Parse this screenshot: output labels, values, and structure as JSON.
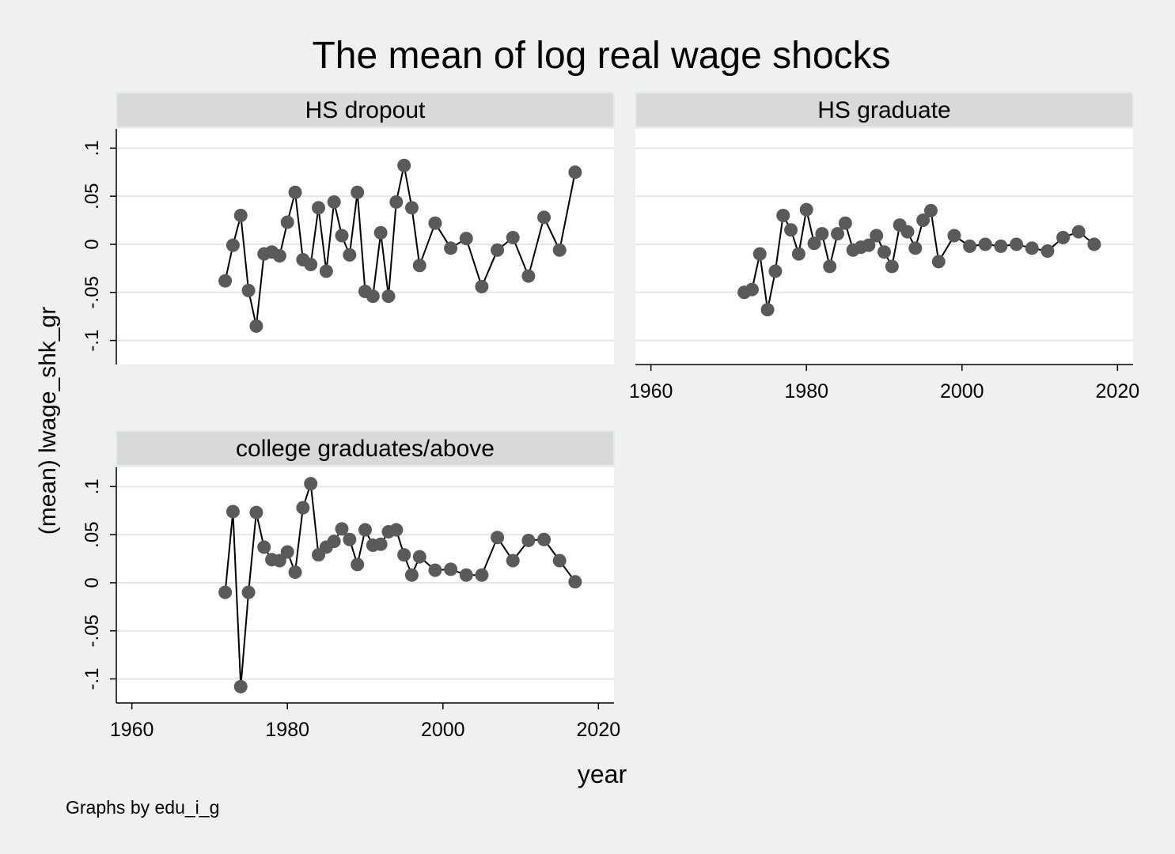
{
  "chart_data": {
    "type": "line",
    "title": "The mean of log real wage shocks",
    "xlabel": "year",
    "ylabel": "(mean) lwage_shk_gr",
    "note": "Graphs by edu_i_g",
    "xlim": [
      1958,
      2022
    ],
    "ylim": [
      -0.125,
      0.12
    ],
    "xticks": [
      1960,
      1980,
      2000,
      2020
    ],
    "xtick_labels": [
      "1960",
      "1980",
      "2000",
      "2020"
    ],
    "yticks": [
      -0.1,
      -0.05,
      0,
      0.05,
      0.1
    ],
    "ytick_labels": [
      "-.1",
      "-.05",
      "0",
      ".05",
      ".1"
    ],
    "grid": true,
    "markers": true,
    "colors": {
      "background": "#f0f0f0",
      "plot_background": "#ffffff",
      "strip": "#d9d9d9",
      "strip_border": "#e3edf0",
      "marker": "#5a5a5a",
      "line": "#000000",
      "grid": "#e6e6e6"
    },
    "panels": [
      {
        "name": "HS dropout",
        "x": [
          1972,
          1973,
          1974,
          1975,
          1976,
          1977,
          1978,
          1979,
          1980,
          1981,
          1982,
          1983,
          1984,
          1985,
          1986,
          1987,
          1988,
          1989,
          1990,
          1991,
          1992,
          1993,
          1994,
          1995,
          1996,
          1997,
          1999,
          2001,
          2003,
          2005,
          2007,
          2009,
          2011,
          2013,
          2015,
          2017
        ],
        "y": [
          -0.038,
          -0.001,
          0.03,
          -0.048,
          -0.085,
          -0.01,
          -0.008,
          -0.012,
          0.023,
          0.054,
          -0.016,
          -0.021,
          0.038,
          -0.028,
          0.044,
          0.009,
          -0.011,
          0.054,
          -0.049,
          -0.054,
          0.012,
          -0.054,
          0.044,
          0.082,
          0.038,
          -0.022,
          0.022,
          -0.004,
          0.006,
          -0.044,
          -0.006,
          0.007,
          -0.033,
          0.028,
          -0.006,
          0.075
        ]
      },
      {
        "name": "HS graduate",
        "x": [
          1972,
          1973,
          1974,
          1975,
          1976,
          1977,
          1978,
          1979,
          1980,
          1981,
          1982,
          1983,
          1984,
          1985,
          1986,
          1987,
          1988,
          1989,
          1990,
          1991,
          1992,
          1993,
          1994,
          1995,
          1996,
          1997,
          1999,
          2001,
          2003,
          2005,
          2007,
          2009,
          2011,
          2013,
          2015,
          2017
        ],
        "y": [
          -0.05,
          -0.047,
          -0.01,
          -0.068,
          -0.028,
          0.03,
          0.015,
          -0.01,
          0.036,
          0.001,
          0.011,
          -0.023,
          0.011,
          0.022,
          -0.006,
          -0.003,
          -0.001,
          0.009,
          -0.008,
          -0.023,
          0.02,
          0.013,
          -0.004,
          0.025,
          0.035,
          -0.018,
          0.009,
          -0.002,
          0.0,
          -0.002,
          0.0,
          -0.004,
          -0.007,
          0.007,
          0.013,
          0.0
        ]
      },
      {
        "name": "college graduates/above",
        "x": [
          1972,
          1973,
          1974,
          1975,
          1976,
          1977,
          1978,
          1979,
          1980,
          1981,
          1982,
          1983,
          1984,
          1985,
          1986,
          1987,
          1988,
          1989,
          1990,
          1991,
          1992,
          1993,
          1994,
          1995,
          1996,
          1997,
          1999,
          2001,
          2003,
          2005,
          2007,
          2009,
          2011,
          2013,
          2015,
          2017
        ],
        "y": [
          -0.01,
          0.074,
          -0.108,
          -0.01,
          0.073,
          0.037,
          0.024,
          0.023,
          0.032,
          0.011,
          0.078,
          0.103,
          0.029,
          0.037,
          0.043,
          0.056,
          0.045,
          0.019,
          0.055,
          0.039,
          0.04,
          0.053,
          0.055,
          0.029,
          0.008,
          0.027,
          0.013,
          0.014,
          0.008,
          0.008,
          0.047,
          0.023,
          0.044,
          0.045,
          0.023,
          0.001
        ]
      }
    ]
  }
}
